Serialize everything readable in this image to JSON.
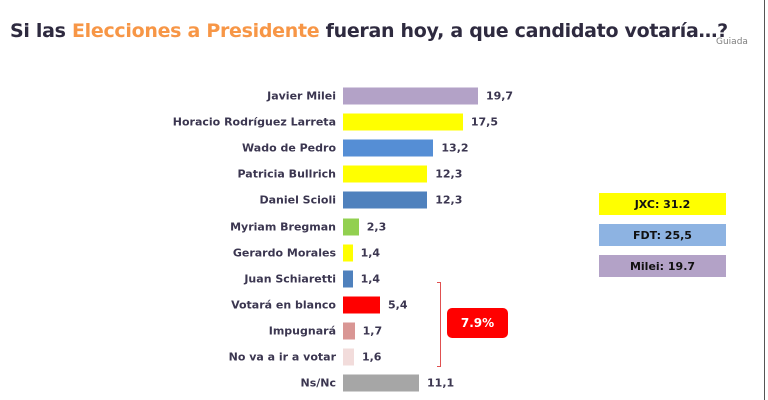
{
  "header": {
    "title_pre": "Si las ",
    "title_highlight": "Elecciones a Presidente",
    "title_post": " fuera hoy, a que candidato votaría…?",
    "subtitle": "Guiada"
  },
  "chart_data": {
    "type": "bar",
    "orientation": "horizontal",
    "categories": [
      "Javier Milei",
      "Horacio Rodríguez Larreta",
      "Wado de Pedro",
      "Patricia Bullrich",
      "Daniel Scioli",
      "Myriam Bregman",
      "Gerardo Morales",
      "Juan Schiaretti",
      "Votará en blanco",
      "Impugnará",
      "No va a ir a votar",
      "Ns/Nc"
    ],
    "values": [
      19.7,
      17.5,
      13.2,
      12.3,
      12.3,
      2.3,
      1.4,
      1.4,
      5.4,
      1.7,
      1.6,
      11.1
    ],
    "value_labels": [
      "19,7",
      "17,5",
      "13,2",
      "12,3",
      "12,3",
      "2,3",
      "1,4",
      "1,4",
      "5,4",
      "1,7",
      "1,6",
      "11,1"
    ],
    "colors": [
      "#b3a2c7",
      "#ffff00",
      "#558ed5",
      "#ffff00",
      "#4f81bd",
      "#92d050",
      "#ffff00",
      "#4f81bd",
      "#ff0000",
      "#d99694",
      "#f2dcdb",
      "#a6a6a6"
    ],
    "grid": false
  },
  "summary": [
    {
      "label": "JXC: 31.2",
      "color": "#ffff00"
    },
    {
      "label": "FDT: 25,5",
      "color": "#8db3e2"
    },
    {
      "label": "Milei: 19.7",
      "color": "#b3a2c7"
    }
  ],
  "annotation": {
    "label": "7.9%",
    "color": "#ff0000"
  }
}
